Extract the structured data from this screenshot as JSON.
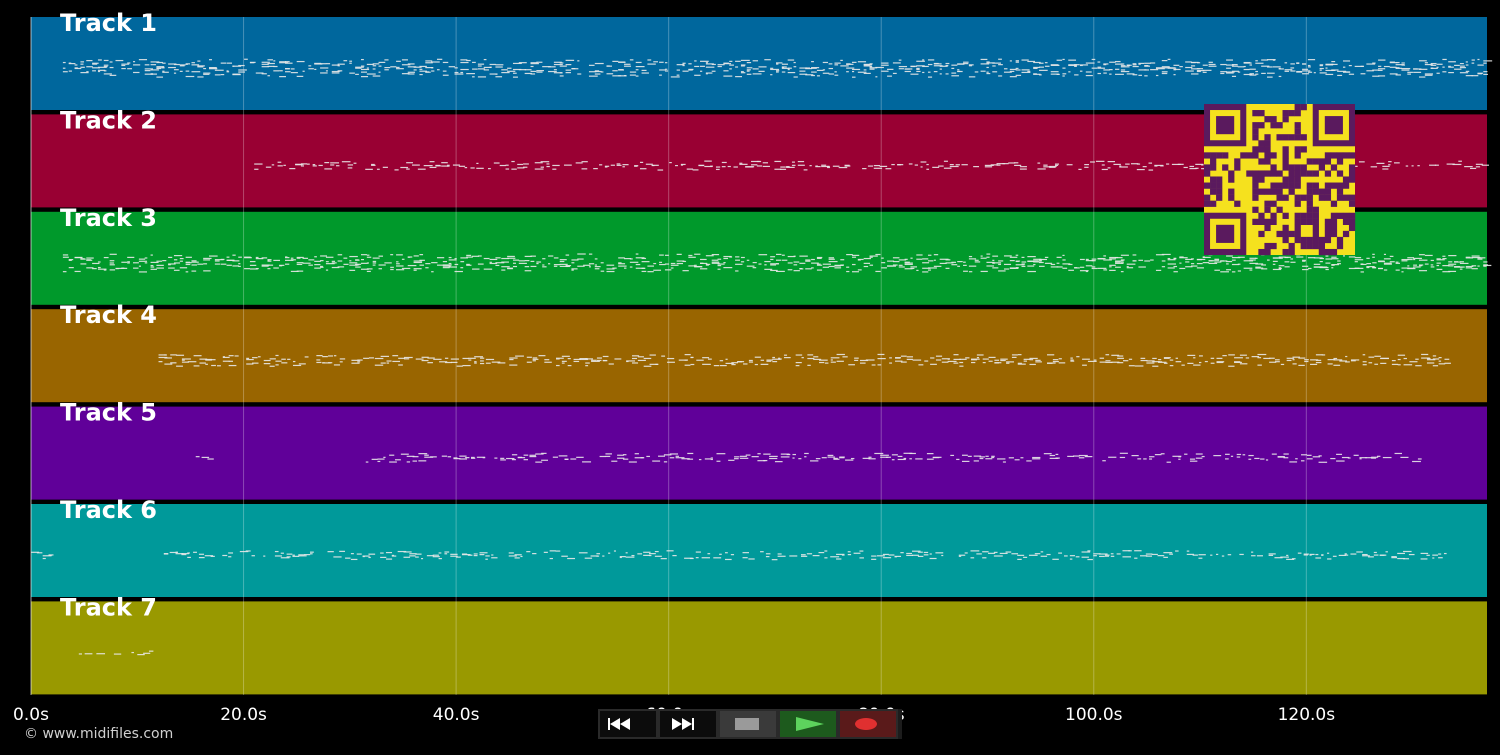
{
  "tracks": [
    {
      "name": "Track 1",
      "color": "#00679d"
    },
    {
      "name": "Track 2",
      "color": "#990033"
    },
    {
      "name": "Track 3",
      "color": "#00992b"
    },
    {
      "name": "Track 4",
      "color": "#996500"
    },
    {
      "name": "Track 5",
      "color": "#600099"
    },
    {
      "name": "Track 6",
      "color": "#00999a"
    },
    {
      "name": "Track 7",
      "color": "#999900"
    }
  ],
  "timeline": {
    "duration_s": 137,
    "ticks": [
      "0.0s",
      "20.0s",
      "40.0s",
      "60.0s",
      "80.0s",
      "100.0s",
      "120.0s"
    ],
    "tick_values": [
      0,
      20,
      40,
      60,
      80,
      100,
      120
    ]
  },
  "footer": {
    "copyright": "© www.midifiles.com"
  },
  "transport": {
    "buttons": [
      {
        "name": "rewind-button",
        "icon": "rewind-icon"
      },
      {
        "name": "fast-forward-button",
        "icon": "fast-forward-icon"
      },
      {
        "name": "stop-button",
        "icon": "stop-icon"
      },
      {
        "name": "play-button",
        "icon": "play-icon"
      },
      {
        "name": "record-button",
        "icon": "record-icon"
      }
    ]
  },
  "qr": {
    "icon": "qr-code-icon",
    "fg": "#5a1a5e",
    "bg": "#f5e11e"
  }
}
